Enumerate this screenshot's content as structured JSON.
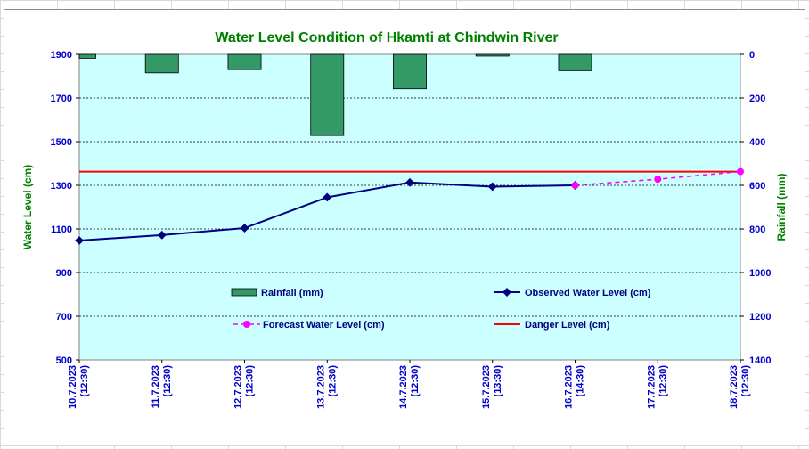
{
  "chart_data": {
    "type": "bar+line",
    "title": "Water Level Condition of Hkamti at Chindwin River",
    "ylabel_left": "Water Level (cm)",
    "ylabel_right": "Rainfall (mm)",
    "ylim_left": [
      500,
      1900
    ],
    "ylim_right_inverted": [
      0,
      1400
    ],
    "yticks_left": [
      1900,
      1700,
      1500,
      1300,
      1100,
      900,
      700,
      500
    ],
    "yticks_right": [
      0,
      200,
      400,
      600,
      800,
      1000,
      1200,
      1400
    ],
    "categories": [
      {
        "date": "10.7.2023",
        "time": "(12:30)"
      },
      {
        "date": "11.7.2023",
        "time": "(12:30)"
      },
      {
        "date": "12.7.2023",
        "time": "(12:30)"
      },
      {
        "date": "13.7.2023",
        "time": "(12:30)"
      },
      {
        "date": "14.7.2023",
        "time": "(12:30)"
      },
      {
        "date": "15.7.2023",
        "time": "(13:30)"
      },
      {
        "date": "16.7.2023",
        "time": "(14:30)"
      },
      {
        "date": "17.7.2023",
        "time": "(12:30)"
      },
      {
        "date": "18.7.2023",
        "time": "(12:30)"
      }
    ],
    "series": [
      {
        "name": "Rainfall (mm)",
        "kind": "bar",
        "axis": "right",
        "color": "#339966",
        "values": [
          18,
          85,
          70,
          372,
          158,
          8,
          75,
          null,
          null
        ]
      },
      {
        "name": "Observed Water Level (cm)",
        "kind": "line",
        "axis": "left",
        "color": "#000080",
        "values": [
          1047,
          1072,
          1104,
          1245,
          1313,
          1294,
          1300,
          null,
          null
        ]
      },
      {
        "name": "Forecast Water Level (cm)",
        "kind": "dashed-line",
        "axis": "left",
        "color": "#ff00ff",
        "values": [
          null,
          null,
          null,
          null,
          null,
          null,
          1300,
          1328,
          1363
        ]
      },
      {
        "name": "Danger Level (cm)",
        "kind": "hline",
        "axis": "left",
        "color": "#ff0000",
        "value": 1363
      }
    ],
    "grid": true,
    "legend_position": "lower-center"
  },
  "colors": {
    "plot_background": "#ccffff",
    "title": "#008000",
    "axis_label": "#008000",
    "tick_label": "#0000cc",
    "legend_text": "#000080"
  }
}
